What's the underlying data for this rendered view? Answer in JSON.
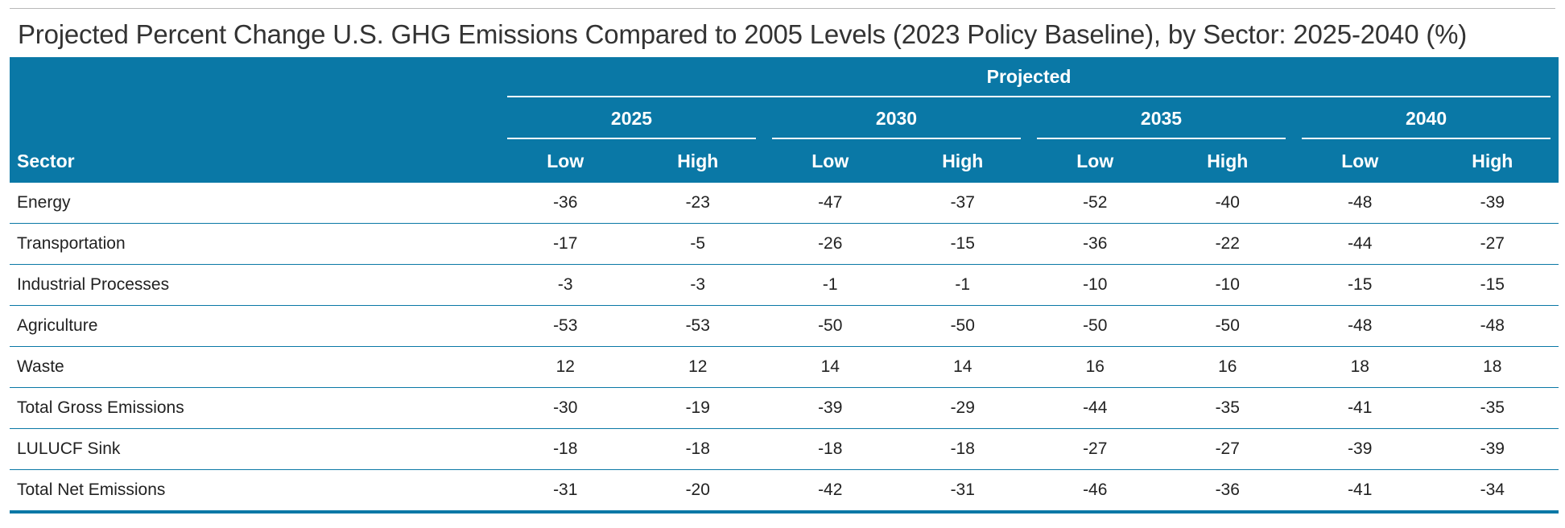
{
  "title": "Projected Percent Change U.S. GHG Emissions Compared to 2005 Levels (2023 Policy Baseline), by Sector: 2025-2040 (%)",
  "table": {
    "sector_header": "Sector",
    "group_header": "Projected",
    "years": [
      "2025",
      "2030",
      "2035",
      "2040"
    ],
    "sub_headers": [
      "Low",
      "High"
    ],
    "rows": [
      {
        "sector": "Energy",
        "values": [
          "-36",
          "-23",
          "-47",
          "-37",
          "-52",
          "-40",
          "-48",
          "-39"
        ]
      },
      {
        "sector": "Transportation",
        "values": [
          "-17",
          "-5",
          "-26",
          "-15",
          "-36",
          "-22",
          "-44",
          "-27"
        ]
      },
      {
        "sector": "Industrial Processes",
        "values": [
          "-3",
          "-3",
          "-1",
          "-1",
          "-10",
          "-10",
          "-15",
          "-15"
        ]
      },
      {
        "sector": "Agriculture",
        "values": [
          "-53",
          "-53",
          "-50",
          "-50",
          "-50",
          "-50",
          "-48",
          "-48"
        ]
      },
      {
        "sector": "Waste",
        "values": [
          "12",
          "12",
          "14",
          "14",
          "16",
          "16",
          "18",
          "18"
        ]
      },
      {
        "sector": "Total Gross Emissions",
        "values": [
          "-30",
          "-19",
          "-39",
          "-29",
          "-44",
          "-35",
          "-41",
          "-35"
        ]
      },
      {
        "sector": "LULUCF Sink",
        "values": [
          "-18",
          "-18",
          "-18",
          "-18",
          "-27",
          "-27",
          "-39",
          "-39"
        ]
      },
      {
        "sector": "Total Net Emissions",
        "values": [
          "-31",
          "-20",
          "-42",
          "-31",
          "-46",
          "-36",
          "-41",
          "-34"
        ]
      }
    ]
  },
  "colors": {
    "header_bg": "#0a78a6",
    "header_text": "#ffffff",
    "row_divider": "#0a78a6",
    "body_text": "#222222"
  }
}
